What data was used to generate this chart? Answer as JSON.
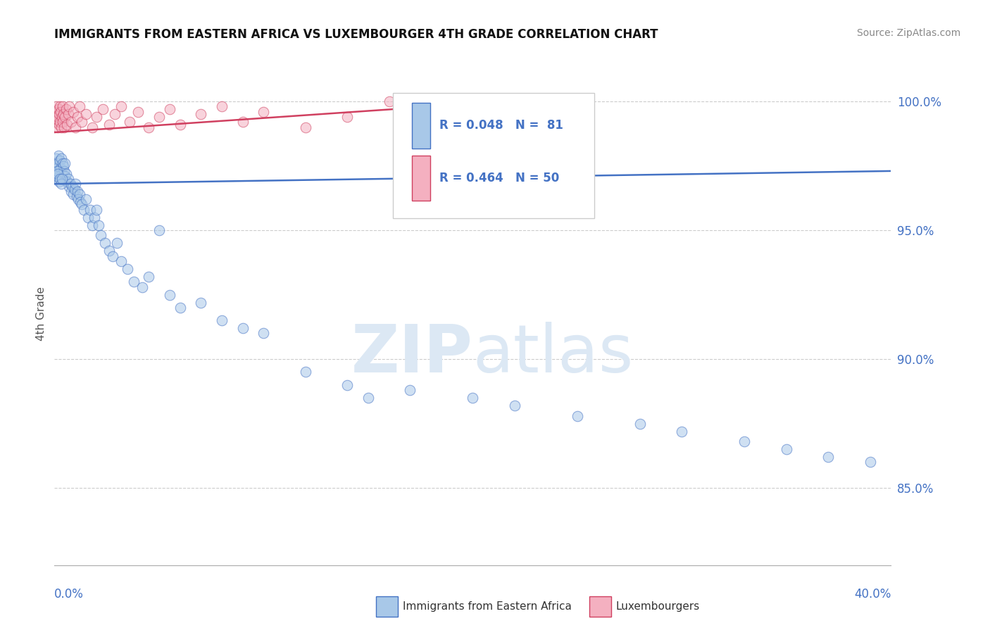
{
  "title": "IMMIGRANTS FROM EASTERN AFRICA VS LUXEMBOURGER 4TH GRADE CORRELATION CHART",
  "source_text": "Source: ZipAtlas.com",
  "ylabel": "4th Grade",
  "y_ticks": [
    85.0,
    90.0,
    95.0,
    100.0
  ],
  "x_min": 0.0,
  "x_max": 40.0,
  "y_min": 82.0,
  "y_max": 101.5,
  "legend_blue_r": "R = 0.048",
  "legend_blue_n": "N =  81",
  "legend_pink_r": "R = 0.464",
  "legend_pink_n": "N = 50",
  "blue_color": "#a8c8e8",
  "pink_color": "#f4b0c0",
  "trendline_blue": "#4472c4",
  "trendline_pink": "#d04060",
  "axis_color": "#4472c4",
  "grid_color": "#cccccc",
  "watermark_color": "#dce8f4",
  "blue_scatter_x": [
    0.05,
    0.08,
    0.1,
    0.12,
    0.15,
    0.18,
    0.2,
    0.22,
    0.25,
    0.28,
    0.3,
    0.32,
    0.35,
    0.38,
    0.4,
    0.42,
    0.45,
    0.48,
    0.5,
    0.55,
    0.6,
    0.65,
    0.7,
    0.75,
    0.8,
    0.85,
    0.9,
    0.95,
    1.0,
    1.05,
    1.1,
    1.15,
    1.2,
    1.25,
    1.3,
    1.4,
    1.5,
    1.6,
    1.7,
    1.8,
    1.9,
    2.0,
    2.1,
    2.2,
    2.4,
    2.6,
    2.8,
    3.0,
    3.2,
    3.5,
    3.8,
    4.2,
    4.5,
    5.0,
    5.5,
    6.0,
    7.0,
    8.0,
    9.0,
    10.0,
    12.0,
    14.0,
    15.0,
    17.0,
    20.0,
    22.0,
    25.0,
    28.0,
    30.0,
    33.0,
    35.0,
    37.0,
    39.0,
    0.06,
    0.09,
    0.13,
    0.17,
    0.21,
    0.26,
    0.31,
    0.36
  ],
  "blue_scatter_y": [
    97.2,
    97.5,
    97.8,
    97.4,
    97.6,
    97.3,
    97.9,
    97.1,
    97.7,
    97.0,
    97.4,
    97.8,
    97.2,
    97.6,
    97.0,
    97.5,
    97.3,
    97.1,
    97.6,
    97.2,
    96.9,
    97.0,
    96.7,
    96.8,
    96.5,
    96.7,
    96.4,
    96.6,
    96.8,
    96.3,
    96.5,
    96.2,
    96.4,
    96.1,
    96.0,
    95.8,
    96.2,
    95.5,
    95.8,
    95.2,
    95.5,
    95.8,
    95.2,
    94.8,
    94.5,
    94.2,
    94.0,
    94.5,
    93.8,
    93.5,
    93.0,
    92.8,
    93.2,
    95.0,
    92.5,
    92.0,
    92.2,
    91.5,
    91.2,
    91.0,
    89.5,
    89.0,
    88.5,
    88.8,
    88.5,
    88.2,
    87.8,
    87.5,
    87.2,
    86.8,
    86.5,
    86.2,
    86.0,
    97.0,
    97.1,
    97.3,
    97.2,
    96.9,
    97.0,
    96.8,
    97.0
  ],
  "pink_scatter_x": [
    0.05,
    0.07,
    0.09,
    0.11,
    0.13,
    0.15,
    0.17,
    0.19,
    0.21,
    0.23,
    0.25,
    0.27,
    0.3,
    0.32,
    0.35,
    0.38,
    0.4,
    0.43,
    0.46,
    0.5,
    0.55,
    0.6,
    0.65,
    0.7,
    0.8,
    0.9,
    1.0,
    1.1,
    1.2,
    1.3,
    1.5,
    1.8,
    2.0,
    2.3,
    2.6,
    2.9,
    3.2,
    3.6,
    4.0,
    4.5,
    5.0,
    5.5,
    6.0,
    7.0,
    8.0,
    9.0,
    10.0,
    12.0,
    14.0,
    16.0
  ],
  "pink_scatter_y": [
    99.2,
    99.5,
    99.8,
    99.3,
    99.6,
    99.0,
    99.4,
    99.7,
    99.1,
    99.5,
    99.8,
    99.2,
    99.6,
    99.0,
    99.4,
    99.8,
    99.2,
    99.5,
    99.0,
    99.4,
    99.7,
    99.1,
    99.5,
    99.8,
    99.2,
    99.6,
    99.0,
    99.4,
    99.8,
    99.2,
    99.5,
    99.0,
    99.4,
    99.7,
    99.1,
    99.5,
    99.8,
    99.2,
    99.6,
    99.0,
    99.4,
    99.7,
    99.1,
    99.5,
    99.8,
    99.2,
    99.6,
    99.0,
    99.4,
    100.0
  ],
  "blue_trend_x": [
    0.0,
    40.0
  ],
  "blue_trend_y": [
    96.8,
    97.3
  ],
  "pink_trend_x": [
    0.0,
    18.0
  ],
  "pink_trend_y": [
    98.8,
    99.8
  ]
}
